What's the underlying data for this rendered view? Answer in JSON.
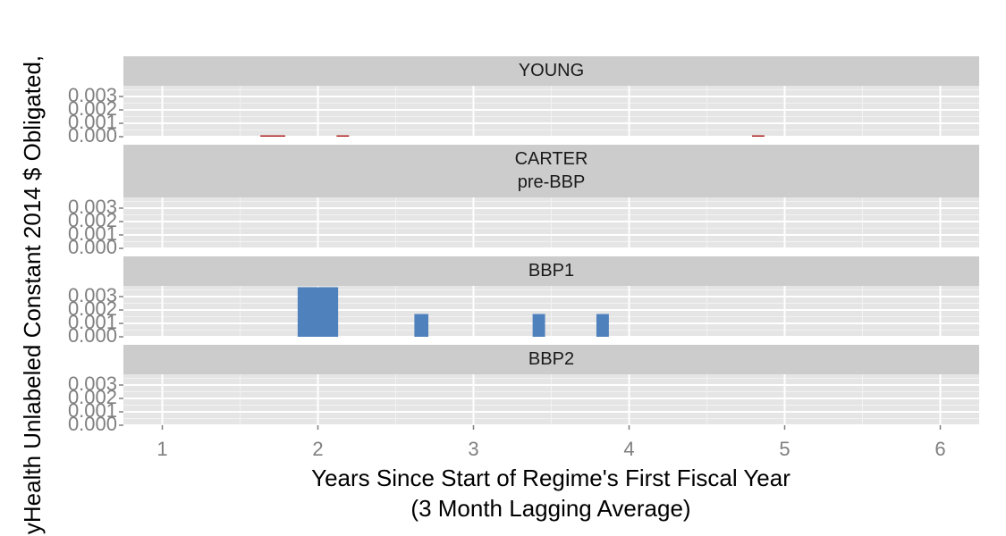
{
  "chart_data": {
    "type": "bar",
    "y_label": "yHealth Unlabeled Constant 2014 $ Obligated,",
    "x_label": [
      "Years Since Start of Regime's First Fiscal Year",
      "(3 Month Lagging Average)"
    ],
    "xlim": [
      0.75,
      6.25
    ],
    "xticks": [
      1,
      2,
      3,
      4,
      5,
      6
    ],
    "ylim": [
      0,
      0.0038
    ],
    "yticks": [
      {
        "value": 0,
        "label": "0.000"
      },
      {
        "value": 0.001,
        "label": "0.001"
      },
      {
        "value": 0.002,
        "label": "0.002"
      },
      {
        "value": 0.003,
        "label": "0.003"
      }
    ],
    "grid": true,
    "facets": [
      {
        "label": [
          "YOUNG"
        ],
        "color": "#b22222",
        "x_start": [
          1.63,
          2.12,
          4.79
        ],
        "x_end": [
          1.79,
          2.2,
          4.87
        ],
        "values": [
          0.0001,
          0.0001,
          0.0001
        ]
      },
      {
        "label": [
          "CARTER",
          "pre-BBP"
        ]
      },
      {
        "label": [
          "BBP1"
        ],
        "color": "#4f81bd",
        "x_start": [
          1.87,
          2.62,
          3.38,
          3.79
        ],
        "x_end": [
          2.13,
          2.71,
          3.46,
          3.87
        ],
        "values": [
          0.0037,
          0.0017,
          0.0017,
          0.0017
        ]
      },
      {
        "label": [
          "BBP2"
        ]
      }
    ]
  }
}
